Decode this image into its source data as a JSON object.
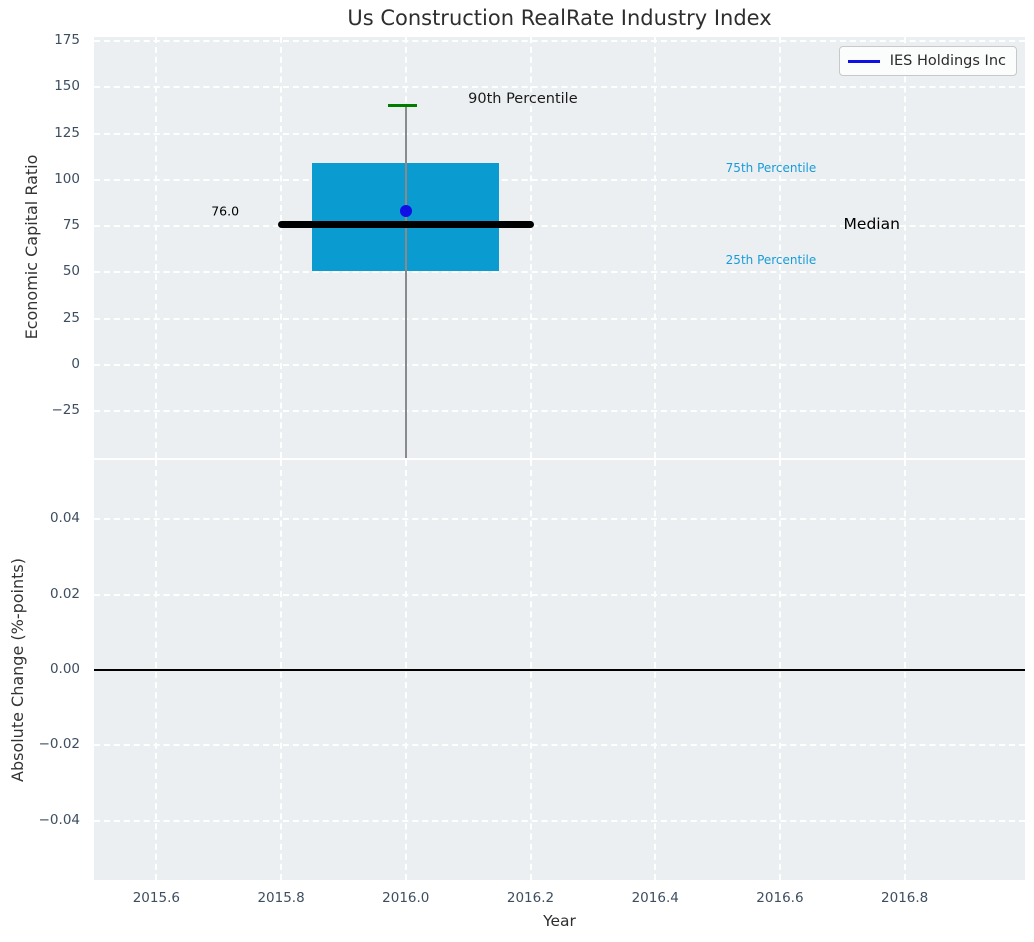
{
  "figure": {
    "title": "Us Construction RealRate Industry Index"
  },
  "legend": {
    "label": "IES Holdings Inc",
    "line_color": "#0f0fe6"
  },
  "colors": {
    "figure_background": "#ffffff",
    "axes_background": "#eceff1",
    "grid": "#ffffff",
    "tick_label": "#3d4e61",
    "title": "#2e2e2e",
    "box_fill": "#0a9cd1",
    "median_line": "#000000",
    "p90_cap": "#007d00",
    "whisker": "#8a8a8a",
    "company_point": "#0f0fe6",
    "percentile_text": "#189cd8",
    "zero_line": "#000000"
  },
  "chart_data": [
    {
      "type": "box",
      "title": "Us Construction RealRate Industry Index",
      "ylabel": "Economic Capital Ratio",
      "ylim": [
        -50.3,
        177.3
      ],
      "xlim": [
        2015.5,
        2016.993
      ],
      "grid": true,
      "legend_position": "upper right",
      "yticks": [
        {
          "v": 175,
          "label": "175"
        },
        {
          "v": 150,
          "label": "150"
        },
        {
          "v": 125,
          "label": "125"
        },
        {
          "v": 100,
          "label": "100"
        },
        {
          "v": 75,
          "label": "75"
        },
        {
          "v": 50,
          "label": "50"
        },
        {
          "v": 25,
          "label": "25"
        },
        {
          "v": 0,
          "label": "0"
        },
        {
          "v": -25,
          "label": "−25"
        }
      ],
      "xticks": [
        {
          "v": 2015.6,
          "label": "2015.6"
        },
        {
          "v": 2015.8,
          "label": "2015.8"
        },
        {
          "v": 2016.0,
          "label": "2016.0"
        },
        {
          "v": 2016.2,
          "label": "2016.2"
        },
        {
          "v": 2016.4,
          "label": "2016.4"
        },
        {
          "v": 2016.6,
          "label": "2016.6"
        },
        {
          "v": 2016.8,
          "label": "2016.8"
        }
      ],
      "box": {
        "year": 2016.0,
        "p25": 51,
        "median": 76,
        "p75": 109,
        "p90": 140,
        "whisker_extends_below_axis": true,
        "box_span_years": [
          2015.85,
          2016.15
        ],
        "median_span_years": [
          2015.795,
          2016.205
        ],
        "cap_span_years": [
          2015.971,
          2016.018
        ]
      },
      "company_point": {
        "name": "IES Holdings Inc",
        "year": 2016.0,
        "value": 83
      },
      "annotations": [
        {
          "text": "76.0",
          "x": 2015.688,
          "y": 83,
          "color": "#000000",
          "size": 12.5
        },
        {
          "text": "90th Percentile",
          "x": 2016.1,
          "y": 144,
          "color": "#1a1a1a",
          "size": 14.5
        },
        {
          "text": "75th Percentile",
          "x": 2016.513,
          "y": 106.5,
          "color": "#189cd8",
          "size": 12
        },
        {
          "text": "Median",
          "x": 2016.702,
          "y": 76,
          "color": "#000000",
          "size": 15.5
        },
        {
          "text": "25th Percentile",
          "x": 2016.513,
          "y": 56.5,
          "color": "#189cd8",
          "size": 12
        }
      ]
    },
    {
      "type": "line",
      "ylabel": "Absolute Change (%-points)",
      "xlabel": "Year",
      "ylim": [
        -0.0558,
        0.0558
      ],
      "xlim": [
        2015.5,
        2016.993
      ],
      "grid": true,
      "yticks": [
        {
          "v": 0.04,
          "label": "0.04"
        },
        {
          "v": 0.02,
          "label": "0.02"
        },
        {
          "v": 0.0,
          "label": "0.00"
        },
        {
          "v": -0.02,
          "label": "−0.02"
        },
        {
          "v": -0.04,
          "label": "−0.04"
        }
      ],
      "xticks": [
        {
          "v": 2015.6,
          "label": "2015.6"
        },
        {
          "v": 2015.8,
          "label": "2015.8"
        },
        {
          "v": 2016.0,
          "label": "2016.0"
        },
        {
          "v": 2016.2,
          "label": "2016.2"
        },
        {
          "v": 2016.4,
          "label": "2016.4"
        },
        {
          "v": 2016.6,
          "label": "2016.6"
        },
        {
          "v": 2016.8,
          "label": "2016.8"
        }
      ],
      "zero_line_y": 0.0,
      "series": []
    }
  ]
}
